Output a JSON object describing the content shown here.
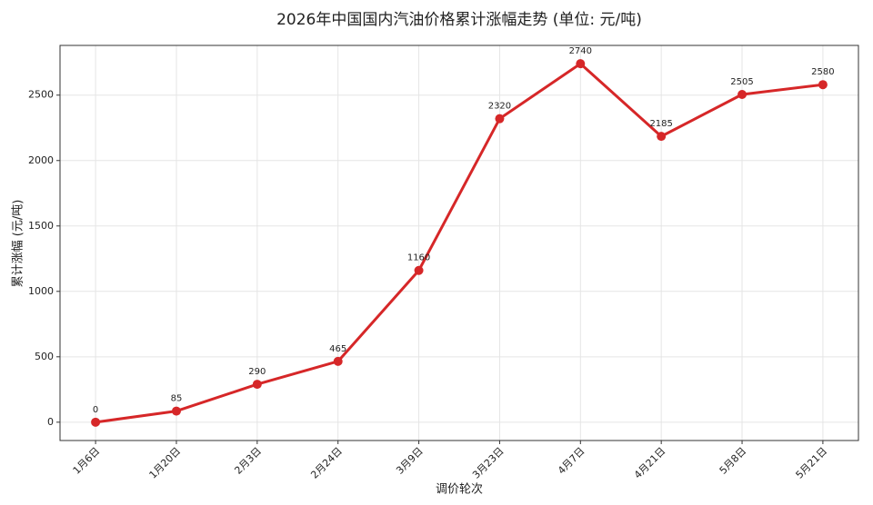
{
  "chart_data": {
    "type": "line",
    "title": "2026年中国国内汽油价格累计涨幅走势 (单位: 元/吨)",
    "x_label": "调价轮次",
    "y_label": "累计涨幅 (元/吨)",
    "categories": [
      "1月6日",
      "1月20日",
      "2月3日",
      "2月24日",
      "3月9日",
      "3月23日",
      "4月7日",
      "4月21日",
      "5月8日",
      "5月21日"
    ],
    "values": [
      0,
      85,
      290,
      465,
      1160,
      2320,
      2740,
      2185,
      2505,
      2580
    ],
    "color": "#d62728",
    "ylim": [
      -140,
      2880
    ],
    "yticks": [
      0,
      500,
      1000,
      1500,
      2000,
      2500
    ],
    "grid": true
  }
}
